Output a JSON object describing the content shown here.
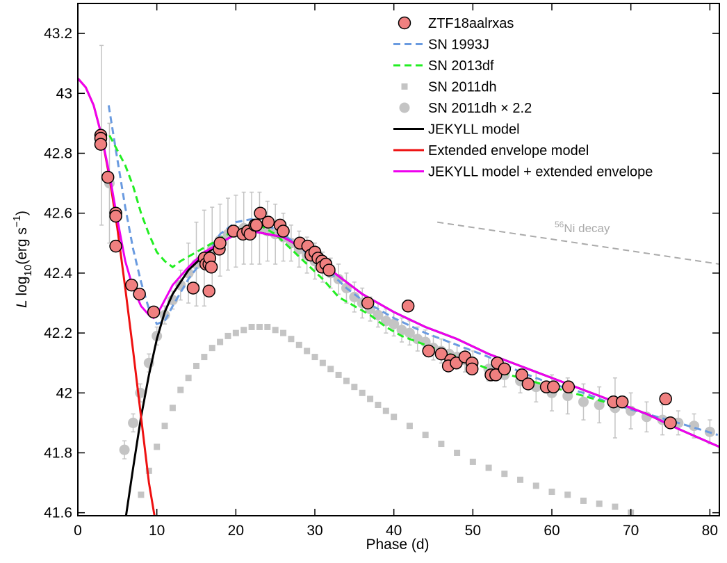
{
  "chart_data": {
    "type": "line",
    "ylabel_parts": [
      "L",
      " log",
      "10",
      "(erg s",
      "−1",
      ")"
    ],
    "xlabel": "Phase (d)",
    "annotation_parts": [
      "56",
      "Ni decay"
    ],
    "annotation_line": {
      "x": [
        45.5,
        81.2
      ],
      "y": [
        42.57,
        42.43
      ],
      "color": "#aaaaaa"
    },
    "xlim": [
      0,
      81.2
    ],
    "ylim": [
      41.59,
      43.3
    ],
    "xticks": [
      0,
      10,
      20,
      30,
      40,
      50,
      60,
      70,
      80
    ],
    "yticks": [
      41.6,
      41.8,
      42,
      42.2,
      42.4,
      42.6,
      42.8,
      43,
      43.2
    ],
    "legend": "upper right",
    "series": [
      {
        "name": "SN 2011dh × 2.2",
        "color": "#c4c4c4",
        "marker": "circle",
        "legend_order": 4,
        "x": [
          3.0,
          4.0,
          5.9,
          7.0,
          7.9,
          9.0,
          10.0,
          11,
          12,
          13,
          14,
          15,
          16,
          17,
          18,
          19,
          20,
          21,
          22,
          23,
          24,
          25,
          26,
          27,
          28,
          29,
          30,
          31,
          32,
          33,
          34,
          35,
          36,
          37,
          38,
          39,
          40,
          41,
          42,
          43,
          44,
          45,
          46,
          47,
          48,
          49,
          50,
          52,
          54,
          56,
          58,
          60,
          62,
          64,
          66,
          68,
          70,
          72,
          74,
          76,
          78,
          80
        ],
        "values": [
          42.86,
          42.7,
          41.81,
          41.9,
          42.0,
          42.1,
          42.19,
          42.26,
          42.31,
          42.36,
          42.4,
          42.43,
          42.45,
          42.48,
          42.51,
          42.53,
          42.54,
          42.55,
          42.55,
          42.55,
          42.54,
          42.53,
          42.52,
          42.5,
          42.48,
          42.46,
          42.44,
          42.42,
          42.4,
          42.38,
          42.35,
          42.32,
          42.3,
          42.28,
          42.26,
          42.24,
          42.23,
          42.21,
          42.2,
          42.18,
          42.17,
          42.15,
          42.14,
          42.13,
          42.12,
          42.11,
          42.1,
          42.08,
          42.06,
          42.04,
          42.02,
          42.0,
          41.99,
          41.97,
          41.96,
          41.95,
          41.94,
          41.92,
          41.91,
          41.9,
          41.89,
          41.87
        ],
        "errors": [
          0.3,
          0.2,
          0.03,
          0.03,
          0.03,
          0.03,
          0.03,
          0.03,
          0.03,
          0.05,
          0.1,
          0.14,
          0.16,
          0.14,
          0.12,
          0.12,
          0.12,
          0.12,
          0.12,
          0.12,
          0.1,
          0.1,
          0.08,
          0.06,
          0.06,
          0.06,
          0.06,
          0.05,
          0.05,
          0.05,
          0.05,
          0.05,
          0.05,
          0.04,
          0.04,
          0.04,
          0.04,
          0.04,
          0.04,
          0.04,
          0.04,
          0.04,
          0.04,
          0.04,
          0.04,
          0.04,
          0.04,
          0.04,
          0.04,
          0.04,
          0.05,
          0.06,
          0.06,
          0.06,
          0.06,
          0.1,
          0.06,
          0.05,
          0.05,
          0.04,
          0.04,
          0.04
        ]
      },
      {
        "name": "SN 2011dh",
        "color": "#c4c4c4",
        "marker": "square",
        "legend_order": 3,
        "x": [
          8,
          9,
          10,
          11,
          12,
          13,
          14,
          15,
          16,
          17,
          18,
          19,
          20,
          21,
          22,
          23,
          24,
          25,
          26,
          27,
          28,
          29,
          30,
          31,
          32,
          33,
          34,
          35,
          36,
          37,
          38,
          39,
          40,
          42,
          44,
          46,
          48,
          50,
          52,
          54,
          56,
          58,
          60,
          62,
          64,
          66,
          68,
          70
        ],
        "values": [
          41.66,
          41.74,
          41.82,
          41.89,
          41.95,
          42.01,
          42.05,
          42.09,
          42.12,
          42.15,
          42.17,
          42.19,
          42.2,
          42.21,
          42.22,
          42.22,
          42.22,
          42.21,
          42.2,
          42.18,
          42.16,
          42.14,
          42.12,
          42.1,
          42.08,
          42.06,
          42.04,
          42.02,
          42.0,
          41.98,
          41.96,
          41.94,
          41.92,
          41.89,
          41.86,
          41.83,
          41.8,
          41.77,
          41.75,
          41.73,
          41.71,
          41.69,
          41.67,
          41.66,
          41.64,
          41.63,
          41.62,
          41.6
        ]
      },
      {
        "name": "SN 1993J",
        "color": "#6a9be0",
        "dash": true,
        "legend_order": 1,
        "x": [
          3.9,
          5,
          6,
          7,
          8,
          9,
          10,
          11,
          12,
          14,
          16,
          18,
          20,
          22,
          24,
          26,
          28,
          30,
          32,
          34,
          36,
          38,
          40,
          44,
          48,
          52,
          56,
          60,
          64,
          68,
          72,
          76,
          81
        ],
        "values": [
          42.96,
          42.78,
          42.62,
          42.48,
          42.37,
          42.28,
          42.23,
          42.24,
          42.29,
          42.38,
          42.45,
          42.53,
          42.57,
          42.58,
          42.56,
          42.53,
          42.49,
          42.44,
          42.4,
          42.35,
          42.31,
          42.28,
          42.25,
          42.2,
          42.16,
          42.12,
          42.07,
          42.03,
          42.0,
          41.96,
          41.93,
          41.9,
          41.86
        ]
      },
      {
        "name": "SN 2013df",
        "color": "#22ee22",
        "dash": true,
        "legend_order": 2,
        "x": [
          4,
          5,
          6,
          7,
          8,
          9,
          10,
          11,
          12,
          13,
          15,
          17,
          19,
          21,
          23,
          25,
          27,
          29,
          31,
          33,
          35,
          37,
          39,
          41,
          43,
          45,
          48,
          52,
          56,
          60,
          64,
          68
        ],
        "values": [
          42.86,
          42.81,
          42.76,
          42.69,
          42.6,
          42.53,
          42.47,
          42.44,
          42.42,
          42.44,
          42.47,
          42.5,
          42.53,
          42.55,
          42.56,
          42.53,
          42.48,
          42.43,
          42.38,
          42.32,
          42.29,
          42.26,
          42.22,
          42.19,
          42.17,
          42.15,
          42.12,
          42.08,
          42.05,
          42.02,
          41.99,
          41.96
        ]
      },
      {
        "name": "JEKYLL model",
        "color": "#000000",
        "legend_order": 5,
        "x": [
          6.1,
          7,
          8,
          9,
          10,
          11,
          12,
          14,
          16,
          18,
          20,
          22,
          24,
          26,
          28,
          30,
          32,
          34,
          36,
          38,
          40,
          44,
          48,
          52,
          56,
          60,
          64,
          68,
          72,
          76,
          81.2
        ],
        "values": [
          41.59,
          41.75,
          41.92,
          42.06,
          42.18,
          42.27,
          42.33,
          42.41,
          42.46,
          42.5,
          42.53,
          42.54,
          42.53,
          42.52,
          42.49,
          42.45,
          42.41,
          42.37,
          42.33,
          42.3,
          42.27,
          42.22,
          42.18,
          42.13,
          42.09,
          42.05,
          42.01,
          41.97,
          41.93,
          41.88,
          41.82
        ]
      },
      {
        "name": "Extended envelope model",
        "color": "#ee1111",
        "legend_order": 6,
        "x": [
          0,
          1,
          2,
          3,
          4,
          5,
          6,
          7,
          8,
          9,
          9.7
        ],
        "values": [
          43.05,
          43.02,
          42.96,
          42.86,
          42.72,
          42.55,
          42.35,
          42.14,
          41.92,
          41.7,
          41.59
        ]
      },
      {
        "name": "JEKYLL model + extended envelope",
        "color": "#ee00ee",
        "legend_order": 7,
        "x": [
          0,
          1,
          2,
          3,
          4,
          5,
          6,
          7,
          8,
          9,
          9.6,
          10,
          11,
          12,
          14,
          16,
          18,
          20,
          22,
          24,
          26,
          28,
          30,
          32,
          34,
          36,
          40,
          44,
          48,
          52,
          56,
          60,
          64,
          68,
          72,
          76,
          81.2
        ],
        "values": [
          43.05,
          43.02,
          42.96,
          42.86,
          42.73,
          42.58,
          42.44,
          42.35,
          42.29,
          42.26,
          42.25,
          42.26,
          42.31,
          42.36,
          42.42,
          42.47,
          42.5,
          42.53,
          42.54,
          42.53,
          42.52,
          42.49,
          42.45,
          42.41,
          42.37,
          42.33,
          42.27,
          42.22,
          42.18,
          42.13,
          42.09,
          42.05,
          42.01,
          41.97,
          41.93,
          41.88,
          41.82
        ]
      },
      {
        "name": "ZTF18aalrxas",
        "color": "#f08080",
        "marker": "ringed",
        "legend_order": 0,
        "x": [
          2.9,
          2.9,
          2.9,
          3.8,
          4.8,
          4.8,
          4.8,
          6.8,
          7.8,
          9.6,
          14.6,
          16.0,
          16.2,
          16.6,
          16.7,
          16.6,
          16.9,
          17.9,
          18.0,
          19.7,
          20.9,
          21.5,
          21.8,
          22.4,
          22.6,
          23.1,
          24.1,
          25.6,
          26.0,
          28.1,
          29.1,
          29.5,
          30.0,
          30.4,
          30.9,
          30.9,
          31.4,
          31.8,
          36.7,
          41.8,
          44.4,
          46.0,
          47.2,
          46.9,
          47.9,
          49.0,
          49.9,
          49.9,
          52.3,
          52.9,
          53.1,
          54.0,
          56.2,
          57.0,
          59.3,
          60.2,
          62.1,
          67.8,
          68.9,
          74.4,
          75.0
        ],
        "values": [
          42.86,
          42.85,
          42.83,
          42.72,
          42.6,
          42.59,
          42.49,
          42.36,
          42.33,
          42.27,
          42.35,
          42.45,
          42.43,
          42.43,
          42.45,
          42.34,
          42.42,
          42.48,
          42.5,
          42.54,
          42.53,
          42.54,
          42.53,
          42.56,
          42.56,
          42.6,
          42.57,
          42.56,
          42.54,
          42.5,
          42.49,
          42.46,
          42.47,
          42.45,
          42.44,
          42.42,
          42.43,
          42.41,
          42.3,
          42.29,
          42.14,
          42.13,
          42.11,
          42.09,
          42.1,
          42.12,
          42.1,
          42.08,
          42.06,
          42.06,
          42.1,
          42.08,
          42.06,
          42.03,
          42.02,
          42.02,
          42.02,
          41.97,
          41.97,
          41.98,
          41.9
        ]
      }
    ]
  }
}
